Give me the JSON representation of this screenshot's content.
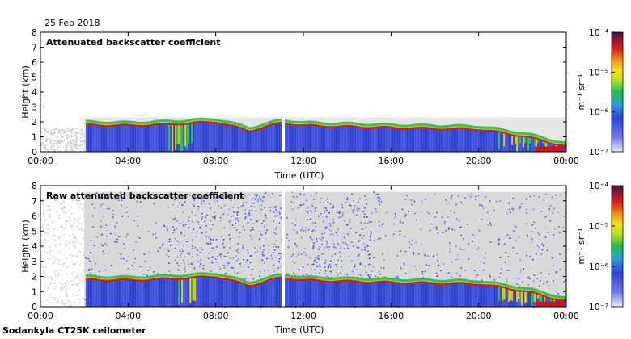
{
  "date_label": "25 Feb 2018",
  "footer": "Sodankyla CT25K ceilometer",
  "chart_data": [
    {
      "type": "heatmap",
      "title": "Attenuated backscatter coefficient",
      "xlabel": "Time (UTC)",
      "ylabel": "Height (km)",
      "x_ticks": [
        "00:00",
        "04:00",
        "08:00",
        "12:00",
        "16:00",
        "20:00",
        "00:00"
      ],
      "y_ticks": [
        "0",
        "1",
        "2",
        "3",
        "4",
        "5",
        "6",
        "7",
        "8"
      ],
      "xlim_hours": [
        0,
        24
      ],
      "ylim_km": [
        0,
        8
      ],
      "colorbar": {
        "unit_label": "m⁻¹ sr⁻¹",
        "ticks": [
          "10⁻⁴",
          "10⁻⁵",
          "10⁻⁶",
          "10⁻⁷"
        ],
        "scale": "log",
        "range": [
          1e-07,
          0.0001
        ]
      },
      "layer_top_km": [
        [
          2.0,
          1.8
        ],
        [
          4.0,
          1.75
        ],
        [
          6.0,
          1.85
        ],
        [
          8.0,
          2.0
        ],
        [
          9.5,
          1.4
        ],
        [
          11.0,
          1.95
        ],
        [
          12.0,
          1.75
        ],
        [
          16.0,
          1.6
        ],
        [
          20.0,
          1.5
        ],
        [
          22.0,
          1.05
        ],
        [
          24.0,
          0.35
        ]
      ]
    },
    {
      "type": "heatmap",
      "title": "Raw attenuated backscatter coefficient",
      "xlabel": "Time (UTC)",
      "ylabel": "Height (km)",
      "x_ticks": [
        "00:00",
        "04:00",
        "08:00",
        "12:00",
        "16:00",
        "20:00",
        "00:00"
      ],
      "y_ticks": [
        "0",
        "1",
        "2",
        "3",
        "4",
        "5",
        "6",
        "7",
        "8"
      ],
      "xlim_hours": [
        0,
        24
      ],
      "ylim_km": [
        0,
        8
      ],
      "colorbar": {
        "unit_label": "m⁻¹ sr⁻¹",
        "ticks": [
          "10⁻⁴",
          "10⁻⁵",
          "10⁻⁶",
          "10⁻⁷"
        ],
        "scale": "log",
        "range": [
          1e-07,
          0.0001
        ]
      },
      "layer_top_km": [
        [
          2.0,
          1.8
        ],
        [
          4.0,
          1.75
        ],
        [
          6.0,
          1.85
        ],
        [
          8.0,
          2.0
        ],
        [
          9.5,
          1.4
        ],
        [
          11.0,
          1.95
        ],
        [
          12.0,
          1.75
        ],
        [
          16.0,
          1.6
        ],
        [
          20.0,
          1.5
        ],
        [
          22.0,
          1.05
        ],
        [
          24.0,
          0.35
        ]
      ]
    }
  ]
}
